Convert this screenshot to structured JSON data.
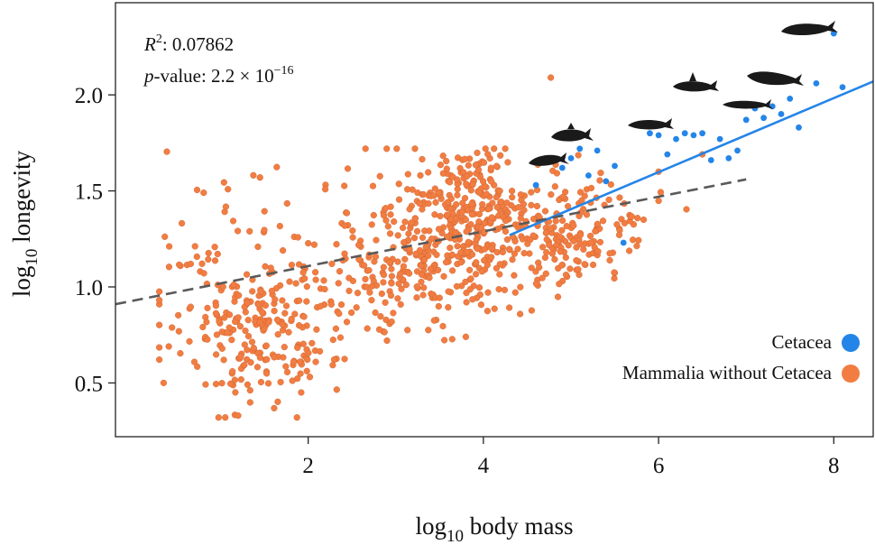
{
  "chart_data": {
    "type": "scatter",
    "xlabel": {
      "prefix": "log",
      "sub": "10",
      "rest": " body mass"
    },
    "ylabel": {
      "prefix": "log",
      "sub": "10",
      "rest": " longevity"
    },
    "xlim": [
      -0.2,
      8.45
    ],
    "ylim": [
      0.22,
      2.48
    ],
    "x_ticks": [
      2,
      4,
      6,
      8
    ],
    "y_ticks": [
      0.5,
      1.0,
      1.5,
      2.0
    ],
    "x_tick_labels": [
      "2",
      "4",
      "6",
      "8"
    ],
    "y_tick_labels": [
      "0.5",
      "1.0",
      "1.5",
      "2.0"
    ],
    "annotations": {
      "r2_label": "R",
      "r2_sup": "2",
      "r2_value": ": 0.07862",
      "p_label": "p",
      "p_text": "-value: 2.2 × 10",
      "p_sup": "−16"
    },
    "legend_position": "bottom-right",
    "series": [
      {
        "name": "Cetacea",
        "color": "#2485e8",
        "points": [
          [
            4.6,
            1.53
          ],
          [
            4.9,
            1.62
          ],
          [
            5.0,
            1.67
          ],
          [
            5.1,
            1.72
          ],
          [
            5.3,
            1.71
          ],
          [
            5.5,
            1.63
          ],
          [
            5.6,
            1.23
          ],
          [
            5.9,
            1.8
          ],
          [
            6.0,
            1.79
          ],
          [
            6.1,
            1.69
          ],
          [
            6.2,
            1.77
          ],
          [
            6.3,
            1.8
          ],
          [
            6.4,
            1.79
          ],
          [
            6.5,
            1.8
          ],
          [
            6.6,
            1.66
          ],
          [
            6.7,
            1.77
          ],
          [
            6.8,
            1.67
          ],
          [
            6.9,
            1.71
          ],
          [
            7.0,
            1.87
          ],
          [
            7.1,
            1.93
          ],
          [
            7.2,
            1.88
          ],
          [
            7.3,
            1.94
          ],
          [
            7.4,
            1.9
          ],
          [
            7.5,
            1.98
          ],
          [
            7.6,
            1.83
          ],
          [
            7.8,
            2.06
          ],
          [
            8.0,
            2.32
          ],
          [
            8.1,
            2.04
          ],
          [
            5.2,
            1.58
          ],
          [
            5.4,
            1.55
          ]
        ]
      },
      {
        "name": "Mammalia without Cetacea",
        "color": "#f27d42"
      }
    ],
    "regressions": [
      {
        "name": "Cetacea",
        "style": "solid",
        "color": "#2485e8",
        "x": [
          4.3,
          8.45
        ],
        "y": [
          1.27,
          2.07
        ]
      },
      {
        "name": "Mammalia without Cetacea",
        "style": "dashed",
        "color": "#5a5a5a",
        "x": [
          -0.2,
          7.0
        ],
        "y": [
          0.91,
          1.56
        ]
      }
    ],
    "whale_icons": [
      "whale-icon",
      "dolphin-icon",
      "killer-whale-icon",
      "porpoise-icon",
      "sperm-whale-icon",
      "baleen-whale-icon"
    ]
  }
}
